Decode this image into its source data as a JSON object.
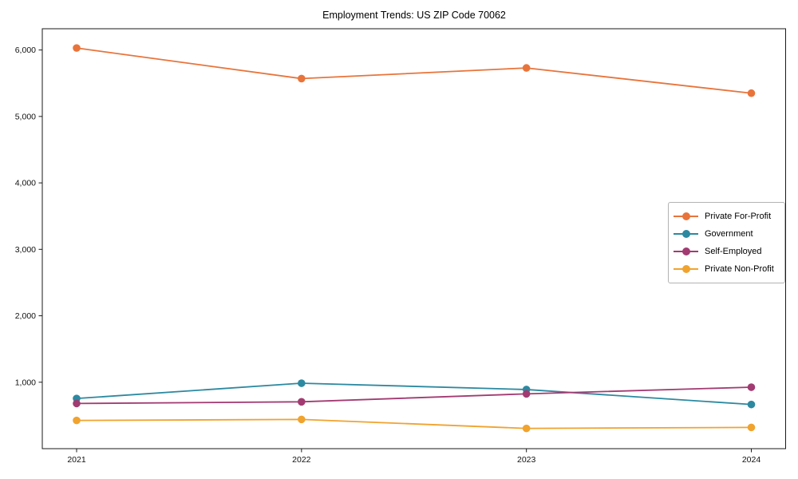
{
  "chart_data": {
    "type": "line",
    "title": "Employment Trends: US ZIP Code 70062",
    "x": [
      "2021",
      "2022",
      "2023",
      "2024"
    ],
    "series": [
      {
        "name": "Private For-Profit",
        "color": "#E8743B",
        "values": [
          6030,
          5570,
          5730,
          5350
        ]
      },
      {
        "name": "Government",
        "color": "#2C89A0",
        "values": [
          755,
          985,
          890,
          665
        ]
      },
      {
        "name": "Self-Employed",
        "color": "#A23B72",
        "values": [
          680,
          705,
          825,
          925
        ]
      },
      {
        "name": "Private Non-Profit",
        "color": "#F0A32F",
        "values": [
          425,
          440,
          305,
          320
        ]
      }
    ],
    "xlabel": "",
    "ylabel": "",
    "ylim": [
      0,
      6320
    ],
    "yticks": [
      1000,
      2000,
      3000,
      4000,
      5000,
      6000
    ],
    "ytick_labels": [
      "1,000",
      "2,000",
      "3,000",
      "4,000",
      "5,000",
      "6,000"
    ],
    "grid": false,
    "legend_position": "center right"
  }
}
